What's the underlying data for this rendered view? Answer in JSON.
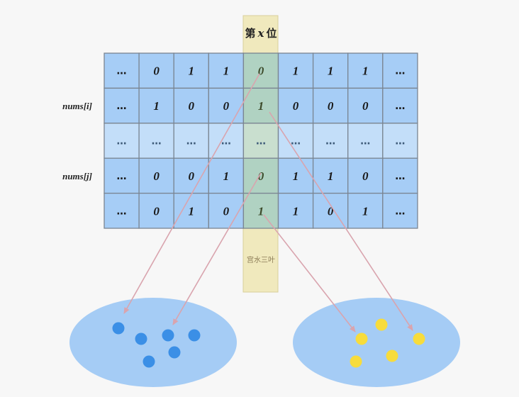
{
  "column_title": {
    "prefix": "第",
    "var": "x",
    "suffix": "位"
  },
  "row_labels": [
    "",
    "nums[i]",
    "",
    "nums[j]",
    ""
  ],
  "grid": [
    [
      "...",
      "0",
      "1",
      "1",
      "0",
      "1",
      "1",
      "1",
      "..."
    ],
    [
      "...",
      "1",
      "0",
      "0",
      "1",
      "0",
      "0",
      "0",
      "..."
    ],
    [
      "...",
      "...",
      "...",
      "...",
      "...",
      "...",
      "...",
      "...",
      "..."
    ],
    [
      "...",
      "0",
      "0",
      "1",
      "0",
      "1",
      "1",
      "0",
      "..."
    ],
    [
      "...",
      "0",
      "1",
      "0",
      "1",
      "1",
      "0",
      "1",
      "..."
    ]
  ],
  "watermark": "宫水三叶",
  "colors": {
    "cell": "#a6cdf6",
    "cell_light": "#c3def9",
    "cell_border": "#7a8592",
    "highlight_column": "#f0e9bd",
    "arrow": "#d9a4ae",
    "ellipse": "#a5ccf5",
    "dot_blue": "#3b8fe6",
    "dot_yellow": "#f7dc3c"
  },
  "groups": [
    {
      "name": "zero-bit-group",
      "dots": 6,
      "color": "dot_blue"
    },
    {
      "name": "one-bit-group",
      "dots": 5,
      "color": "dot_yellow"
    }
  ]
}
